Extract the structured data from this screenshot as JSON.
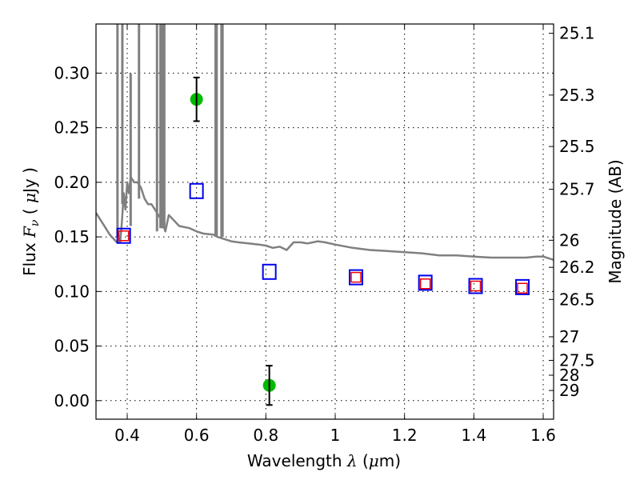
{
  "chart_data": {
    "type": "scatter",
    "title": "",
    "xlabel": "Wavelength  λ (μm)",
    "xlabel_parts": {
      "prefix": "Wavelength  ",
      "lambda": "λ",
      "unit_open": " (",
      "mu": "μ",
      "unit_rest": "m)"
    },
    "ylabel": "Flux  F_ν  ( μJy )",
    "ylabel_parts": {
      "word": "Flux  ",
      "F": "F",
      "nu": "ν",
      "open": "  ( ",
      "mu": "μ",
      "rest": "Jy )"
    },
    "y2label": "Magnitude (AB)",
    "xlim": [
      0.31,
      1.63
    ],
    "ylim": [
      -0.017,
      0.345
    ],
    "grid": true,
    "x_ticks": [
      0.4,
      0.6,
      0.8,
      1.0,
      1.2,
      1.4,
      1.6
    ],
    "x_tick_labels": [
      "0.4",
      "0.6",
      "0.8",
      "1",
      "1.2",
      "1.4",
      "1.6"
    ],
    "y_ticks": [
      0.0,
      0.05,
      0.1,
      0.15,
      0.2,
      0.25,
      0.3
    ],
    "y_tick_labels": [
      "0.00",
      "0.05",
      "0.10",
      "0.15",
      "0.20",
      "0.25",
      "0.30"
    ],
    "y2_ticks": [
      {
        "label": "25.1",
        "flux": 0.3365
      },
      {
        "label": "25.3",
        "flux": 0.2799
      },
      {
        "label": "25.5",
        "flux": 0.2328
      },
      {
        "label": "25.7",
        "flux": 0.1936
      },
      {
        "label": "26",
        "flux": 0.1469
      },
      {
        "label": "26.2",
        "flux": 0.1221
      },
      {
        "label": "26.5",
        "flux": 0.0927
      },
      {
        "label": "27",
        "flux": 0.0585
      },
      {
        "label": "27.5",
        "flux": 0.0369
      },
      {
        "label": "28",
        "flux": 0.0233
      },
      {
        "label": "29",
        "flux": 0.0093
      }
    ],
    "series": [
      {
        "name": "model-spectrum",
        "kind": "line",
        "color": "#808080",
        "x": [
          0.31,
          0.33,
          0.35,
          0.37,
          0.38,
          0.385,
          0.39,
          0.395,
          0.4,
          0.405,
          0.41,
          0.42,
          0.43,
          0.44,
          0.45,
          0.46,
          0.47,
          0.48,
          0.49,
          0.5,
          0.51,
          0.52,
          0.55,
          0.58,
          0.6,
          0.62,
          0.65,
          0.66,
          0.68,
          0.7,
          0.72,
          0.75,
          0.78,
          0.8,
          0.82,
          0.84,
          0.86,
          0.88,
          0.9,
          0.92,
          0.95,
          0.97,
          1.0,
          1.05,
          1.1,
          1.15,
          1.2,
          1.25,
          1.3,
          1.35,
          1.4,
          1.45,
          1.5,
          1.55,
          1.58,
          1.6,
          1.63
        ],
        "y": [
          0.172,
          0.162,
          0.152,
          0.145,
          0.145,
          0.165,
          0.19,
          0.175,
          0.2,
          0.19,
          0.205,
          0.2,
          0.2,
          0.195,
          0.185,
          0.18,
          0.18,
          0.175,
          0.17,
          0.165,
          0.155,
          0.17,
          0.16,
          0.158,
          0.155,
          0.153,
          0.152,
          0.15,
          0.148,
          0.146,
          0.145,
          0.144,
          0.143,
          0.142,
          0.14,
          0.141,
          0.138,
          0.145,
          0.145,
          0.144,
          0.146,
          0.145,
          0.143,
          0.14,
          0.138,
          0.137,
          0.136,
          0.135,
          0.133,
          0.133,
          0.132,
          0.131,
          0.131,
          0.131,
          0.132,
          0.132,
          0.129
        ]
      },
      {
        "name": "emission-lines",
        "kind": "spikes",
        "color": "#808080",
        "x": [
          0.372,
          0.386,
          0.41,
          0.434,
          0.486,
          0.496,
          0.501,
          0.503,
          0.507,
          0.655,
          0.658,
          0.672,
          0.675
        ],
        "base": [
          0.15,
          0.18,
          0.16,
          0.185,
          0.155,
          0.158,
          0.158,
          0.158,
          0.158,
          0.15,
          0.15,
          0.15,
          0.15
        ],
        "top": [
          0.345,
          0.345,
          0.296,
          0.345,
          0.345,
          0.345,
          0.345,
          0.345,
          0.345,
          0.345,
          0.345,
          0.345,
          0.345
        ]
      },
      {
        "name": "observed-photometry",
        "kind": "errorbar",
        "color": "#00bb00",
        "x": [
          0.6,
          0.81
        ],
        "y": [
          0.276,
          0.014
        ],
        "yerr": [
          0.02,
          0.018
        ]
      },
      {
        "name": "model-photometry-blue",
        "kind": "square",
        "color": "#0000ee",
        "x": [
          0.39,
          0.6,
          0.81,
          1.06,
          1.26,
          1.405,
          1.54
        ],
        "y": [
          0.151,
          0.192,
          0.118,
          0.113,
          0.108,
          0.105,
          0.104
        ]
      },
      {
        "name": "model-photometry-red",
        "kind": "square-small",
        "color": "#ee0000",
        "x": [
          0.39,
          1.06,
          1.26,
          1.405,
          1.54
        ],
        "y": [
          0.151,
          0.113,
          0.107,
          0.105,
          0.103
        ]
      }
    ]
  }
}
